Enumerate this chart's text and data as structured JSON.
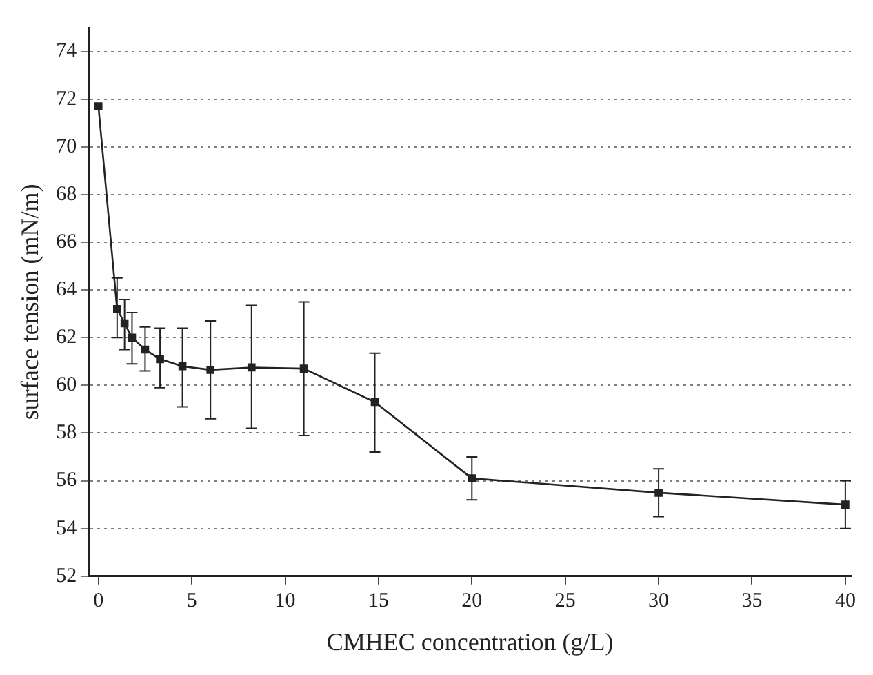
{
  "chart_data": {
    "type": "line",
    "xlabel": "CMHEC concentration (g/L)",
    "ylabel": "surface tension (mN/m)",
    "x": [
      0,
      1,
      1.4,
      1.8,
      2.5,
      3.3,
      4.5,
      6,
      8.2,
      11,
      14.8,
      20,
      30,
      40
    ],
    "series": [
      {
        "color": "#222222",
        "values": [
          71.7,
          63.2,
          62.6,
          62.0,
          61.5,
          61.1,
          60.8,
          60.65,
          60.75,
          60.7,
          59.3,
          56.1,
          55.5,
          55.0
        ],
        "errors": [
          null,
          [
            62.0,
            64.5
          ],
          [
            61.5,
            63.6
          ],
          [
            60.9,
            63.05
          ],
          [
            60.6,
            62.45
          ],
          [
            59.9,
            62.4
          ],
          [
            59.1,
            62.4
          ],
          [
            58.6,
            62.7
          ],
          [
            58.2,
            63.35
          ],
          [
            57.9,
            63.5
          ],
          [
            57.2,
            61.35
          ],
          [
            55.2,
            57.0
          ],
          [
            54.5,
            56.5
          ],
          [
            54.0,
            56.0
          ]
        ]
      }
    ],
    "xlim": [
      -0.5,
      40.3
    ],
    "xticks": [
      0,
      5,
      10,
      15,
      20,
      25,
      30,
      35,
      40
    ],
    "ylim": [
      52,
      75
    ],
    "yticks": [
      52,
      54,
      56,
      58,
      60,
      62,
      64,
      66,
      68,
      70,
      72,
      74
    ],
    "grid": "y",
    "marker": "square",
    "line_style": "solid",
    "legend": false
  }
}
